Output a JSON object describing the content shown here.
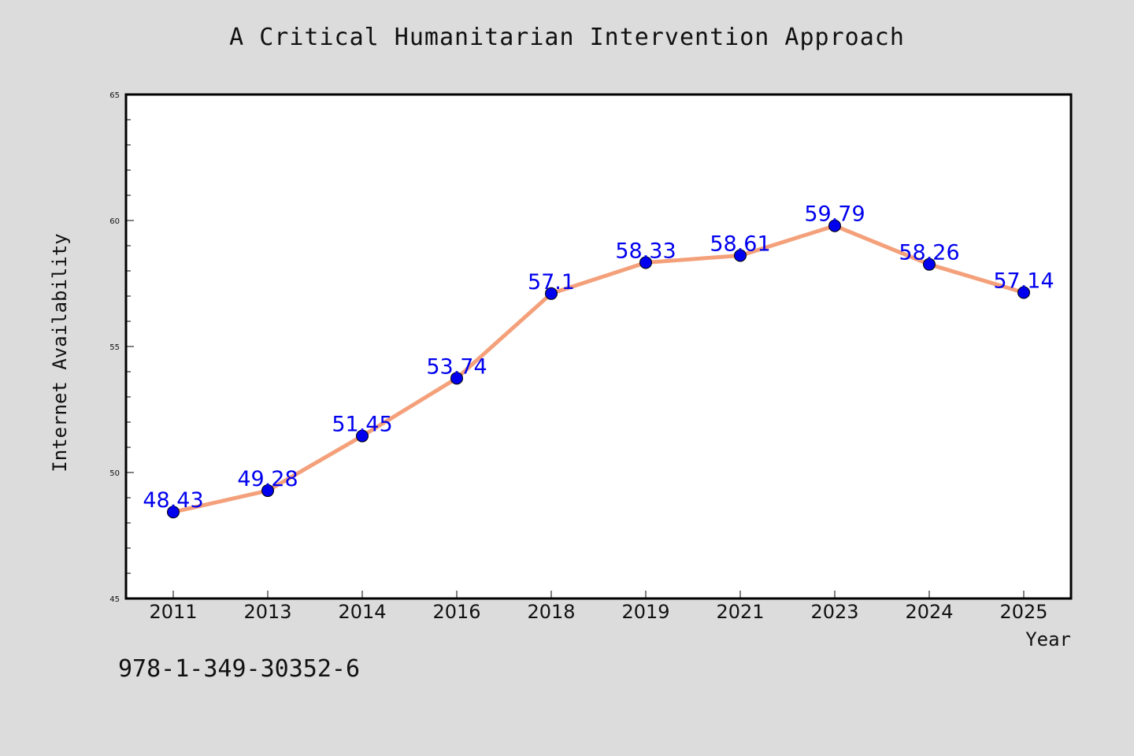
{
  "title": "A Critical Humanitarian Intervention Approach",
  "footer_text": "978-1-349-30352-6",
  "colors": {
    "background": "#dcdcdc",
    "plot_background": "#ffffff",
    "line": "#f4a07a",
    "marker": "#0000ee",
    "label": "#0000ee"
  },
  "chart_data": {
    "type": "line",
    "title": "A Critical Humanitarian Intervention Approach",
    "xlabel": "Year",
    "ylabel": "Internet Availability",
    "categories": [
      "2011",
      "2013",
      "2014",
      "2016",
      "2018",
      "2019",
      "2021",
      "2023",
      "2024",
      "2025"
    ],
    "values": [
      48.43,
      49.28,
      51.45,
      53.74,
      57.1,
      58.33,
      58.61,
      59.79,
      58.26,
      57.14
    ],
    "data_labels": [
      "48.43",
      "49.28",
      "51.45",
      "53.74",
      "57.1",
      "58.33",
      "58.61",
      "59.79",
      "58.26",
      "57.14"
    ],
    "ylim": [
      45,
      65
    ],
    "yticks": [
      "45",
      "50",
      "55",
      "60",
      "65"
    ],
    "grid": false,
    "legend": "none"
  }
}
